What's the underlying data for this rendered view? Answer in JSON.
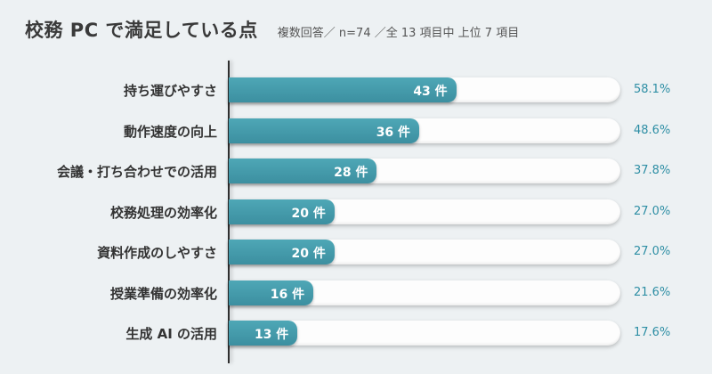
{
  "header": {
    "title": "校務 PC で満足している点",
    "subtitle": "複数回答／ n=74 ／全 13 項目中 上位 7 項目"
  },
  "colors": {
    "bar": "#4a9fae",
    "track": "#fdfdfd",
    "percent_text": "#2f8fa5",
    "background": "#edf1f3"
  },
  "chart_data": {
    "type": "bar",
    "orientation": "horizontal",
    "title": "校務 PC で満足している点",
    "subtitle": "複数回答／ n=74 ／全 13 項目中 上位 7 項目",
    "n": 74,
    "categories": [
      "持ち運びやすさ",
      "動作速度の向上",
      "会議・打ち合わせでの活用",
      "校務処理の効率化",
      "資料作成のしやすさ",
      "授業準備の効率化",
      "生成 AI の活用"
    ],
    "values": [
      43,
      36,
      28,
      20,
      20,
      16,
      13
    ],
    "value_labels": [
      "43 件",
      "36 件",
      "28 件",
      "20 件",
      "20 件",
      "16 件",
      "13 件"
    ],
    "percentages": [
      "58.1%",
      "48.6%",
      "37.8%",
      "27.0%",
      "27.0%",
      "21.6%",
      "17.6%"
    ],
    "xlim": [
      0,
      74
    ]
  }
}
